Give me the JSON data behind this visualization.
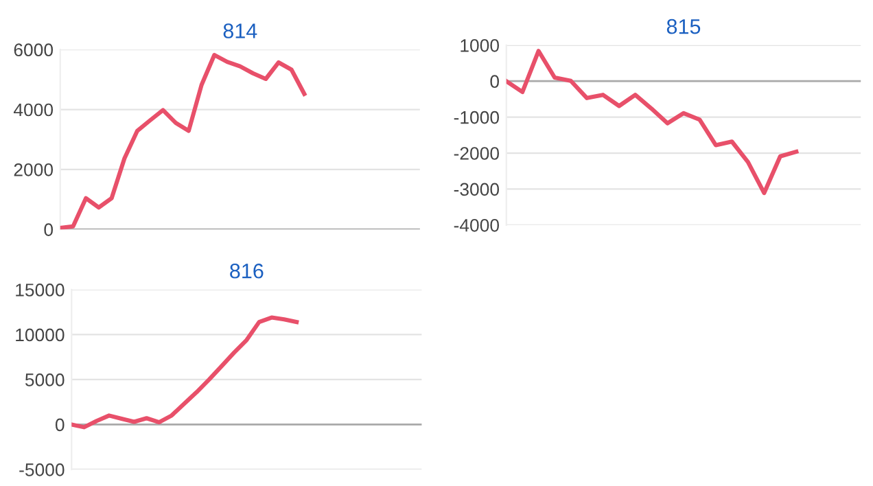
{
  "chart_data": [
    {
      "type": "line",
      "title": "814",
      "categories": [
        null,
        null,
        null,
        null,
        null,
        null,
        null,
        null,
        null,
        null,
        null,
        null,
        null,
        null,
        null,
        null,
        null,
        null,
        null,
        null,
        null,
        null,
        null,
        null,
        null,
        null,
        null,
        null,
        null
      ],
      "series": [
        {
          "color": "#e8506a",
          "values": [
            50,
            100,
            1040,
            730,
            1040,
            2370,
            3290,
            3640,
            3980,
            3550,
            3290,
            4820,
            5820,
            5590,
            5440,
            5210,
            5020,
            5570,
            5330,
            4520,
            null,
            null,
            null,
            null,
            null,
            null,
            null,
            null,
            null
          ]
        }
      ],
      "ylim": [
        0,
        6000
      ],
      "yticks": [
        0,
        2000,
        4000,
        6000
      ],
      "grid": "y",
      "legend": false,
      "ref_lines": [
        {
          "axis": "y",
          "value": 0,
          "color": "#aaaaaa"
        }
      ]
    },
    {
      "type": "line",
      "title": "815",
      "categories": [
        null,
        null,
        null,
        null,
        null,
        null,
        null,
        null,
        null,
        null,
        null,
        null,
        null,
        null,
        null,
        null,
        null,
        null,
        null,
        null,
        null,
        null,
        null
      ],
      "series": [
        {
          "color": "#e8506a",
          "values": [
            0,
            -300,
            840,
            100,
            10,
            -470,
            -380,
            -690,
            -380,
            -760,
            -1170,
            -890,
            -1070,
            -1780,
            -1680,
            -2250,
            -3110,
            -2090,
            -1960,
            null,
            null,
            null,
            null
          ]
        }
      ],
      "ylim": [
        -4000,
        1000
      ],
      "yticks": [
        -4000,
        -3000,
        -2000,
        -1000,
        0,
        1000
      ],
      "grid": "y",
      "legend": false,
      "ref_lines": [
        {
          "axis": "y",
          "value": 0,
          "color": "#aaaaaa"
        }
      ]
    },
    {
      "type": "line",
      "title": "816",
      "categories": [
        null,
        null,
        null,
        null,
        null,
        null,
        null,
        null,
        null,
        null,
        null,
        null,
        null,
        null,
        null,
        null,
        null,
        null,
        null,
        null,
        null,
        null,
        null,
        null,
        null,
        null,
        null,
        null,
        null
      ],
      "series": [
        {
          "color": "#e8506a",
          "values": [
            0,
            -300,
            400,
            1000,
            650,
            300,
            700,
            250,
            1000,
            2300,
            3600,
            5000,
            6500,
            8000,
            9400,
            11400,
            11900,
            11700,
            11400,
            null,
            null,
            null,
            null,
            null,
            null,
            null,
            null,
            null,
            null
          ]
        }
      ],
      "ylim": [
        -5000,
        15000
      ],
      "yticks": [
        -5000,
        0,
        5000,
        10000,
        15000
      ],
      "grid": "y",
      "legend": false,
      "ref_lines": [
        {
          "axis": "y",
          "value": 0,
          "color": "#aaaaaa"
        }
      ]
    }
  ]
}
